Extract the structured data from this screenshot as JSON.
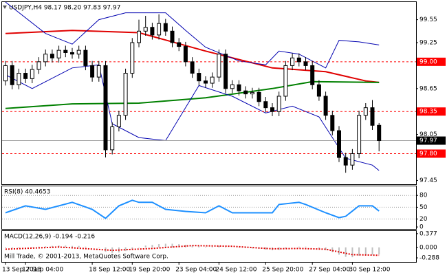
{
  "chart_data": [
    {
      "type": "candlestick",
      "title": "USDJPY,H4  98.17 98.20 97.83 97.97",
      "categories": [
        "13 Sep 2013",
        null,
        null,
        "17 Sep 04:00",
        null,
        null,
        null,
        null,
        null,
        null,
        null,
        null,
        null,
        "18 Sep 12:00",
        null,
        null,
        null,
        null,
        null,
        "19 Sep 20:00",
        null,
        null,
        null,
        null,
        null,
        null,
        "23 Sep 04:00",
        null,
        null,
        null,
        null,
        null,
        "24 Sep 12:00",
        null,
        null,
        null,
        null,
        null,
        null,
        "25 Sep 20:00",
        null,
        null,
        null,
        null,
        null,
        null,
        "27 Sep 04:00",
        null,
        null,
        null,
        null,
        null,
        "30 Sep 12:00",
        null,
        null,
        null,
        null
      ],
      "open": [
        98.75,
        98.95,
        98.7,
        98.85,
        98.78,
        98.9,
        99.0,
        99.1,
        99.05,
        99.15,
        99.12,
        99.1,
        99.15,
        98.95,
        98.8,
        98.95,
        97.85,
        98.15,
        98.3,
        98.85,
        99.25,
        99.4,
        99.45,
        99.35,
        99.5,
        99.4,
        99.25,
        99.2,
        99.0,
        98.85,
        98.75,
        98.72,
        98.8,
        99.1,
        98.65,
        98.7,
        98.62,
        98.58,
        98.6,
        98.48,
        98.4,
        98.35,
        98.55,
        98.95,
        99.05,
        99.0,
        98.95,
        98.7,
        98.55,
        98.3,
        98.1,
        97.75,
        97.65,
        97.8,
        98.3,
        98.4,
        98.17
      ],
      "high": [
        99.01,
        99.01,
        98.91,
        98.91,
        98.96,
        99.06,
        99.16,
        99.16,
        99.21,
        99.21,
        99.18,
        99.21,
        99.21,
        99.01,
        99.01,
        99.01,
        98.21,
        98.36,
        98.91,
        99.31,
        99.55,
        99.6,
        99.51,
        99.62,
        99.56,
        99.46,
        99.31,
        99.26,
        99.06,
        98.91,
        98.81,
        98.86,
        99.16,
        99.16,
        98.76,
        98.76,
        98.68,
        98.66,
        98.66,
        98.54,
        98.46,
        98.61,
        99.01,
        99.11,
        99.11,
        99.06,
        99.01,
        98.76,
        98.61,
        98.36,
        98.16,
        97.81,
        97.86,
        98.36,
        98.46,
        98.5,
        98.2
      ],
      "low": [
        98.69,
        98.64,
        98.64,
        98.72,
        98.72,
        98.84,
        98.94,
        98.99,
        98.99,
        99.06,
        99.04,
        99.04,
        98.89,
        98.74,
        98.74,
        97.75,
        97.79,
        98.09,
        98.24,
        98.79,
        99.19,
        99.34,
        99.29,
        99.29,
        99.34,
        99.19,
        99.14,
        98.94,
        98.79,
        98.69,
        98.66,
        98.66,
        98.74,
        98.59,
        98.59,
        98.56,
        98.52,
        98.52,
        98.42,
        98.34,
        98.29,
        98.29,
        98.49,
        98.89,
        98.94,
        98.89,
        98.64,
        98.49,
        98.24,
        98.04,
        97.69,
        97.55,
        97.59,
        97.74,
        98.24,
        98.11,
        97.83
      ],
      "close": [
        98.95,
        98.7,
        98.85,
        98.78,
        98.9,
        99.0,
        99.1,
        99.05,
        99.15,
        99.12,
        99.1,
        99.15,
        98.95,
        98.8,
        98.95,
        97.85,
        98.15,
        98.3,
        98.85,
        99.25,
        99.4,
        99.45,
        99.35,
        99.5,
        99.4,
        99.25,
        99.2,
        99.0,
        98.85,
        98.75,
        98.72,
        98.8,
        99.1,
        98.65,
        98.7,
        98.62,
        98.58,
        98.6,
        98.48,
        98.4,
        98.35,
        98.55,
        98.95,
        99.05,
        99.0,
        98.95,
        98.7,
        98.55,
        98.3,
        98.1,
        97.75,
        97.65,
        97.8,
        98.3,
        98.4,
        98.17,
        97.97
      ],
      "bull_color": "#ffffff",
      "bear_color": "#000000",
      "ylim": [
        97.4,
        99.78
      ],
      "yticks": [
        97.45,
        98.05,
        98.65,
        99.25,
        99.55
      ],
      "overlays": [
        {
          "color": "#e00000",
          "x": [
            0,
            10,
            20,
            30,
            40,
            48,
            54,
            56
          ],
          "values": [
            99.37,
            99.41,
            99.38,
            99.14,
            98.92,
            98.87,
            98.75,
            98.73
          ]
        },
        {
          "color": "#008000",
          "x": [
            0,
            10,
            20,
            30,
            40,
            46,
            56
          ],
          "values": [
            98.39,
            98.45,
            98.46,
            98.53,
            98.65,
            98.74,
            98.73
          ]
        },
        {
          "color": "#0000b0",
          "x": [
            0,
            6,
            10,
            14,
            18,
            24,
            27,
            30,
            35,
            39,
            41,
            44,
            48,
            50,
            53,
            56
          ],
          "values": [
            99.78,
            99.37,
            99.23,
            99.55,
            99.64,
            99.64,
            99.41,
            99.19,
            99.01,
            98.96,
            99.14,
            99.1,
            98.92,
            99.28,
            99.26,
            99.22
          ]
        },
        {
          "color": "#0000b0",
          "x": [
            0,
            4,
            10,
            14,
            16,
            20,
            24,
            29,
            34,
            39,
            43,
            47,
            51,
            55,
            56
          ],
          "values": [
            98.83,
            98.65,
            98.92,
            98.96,
            98.19,
            98.01,
            97.97,
            98.69,
            98.55,
            98.33,
            98.42,
            98.28,
            97.74,
            97.65,
            97.58
          ]
        }
      ],
      "levels": {
        "values": [
          99.0,
          98.35,
          97.8
        ],
        "value_labels": [
          "99.00",
          "98.35",
          "97.80"
        ],
        "color": "#ff0000"
      },
      "last_color": "#000000"
    },
    {
      "type": "line",
      "title": "RSI(8) 40.4653",
      "x": [
        0,
        3,
        6,
        10,
        13,
        15,
        17,
        19,
        20,
        22,
        24,
        27,
        30,
        32,
        34,
        37,
        40,
        41,
        44,
        45,
        48,
        50,
        51,
        53,
        55,
        56
      ],
      "values": [
        35.9,
        53.5,
        44.7,
        62.4,
        44.7,
        21.8,
        53.5,
        67.7,
        62.4,
        62.4,
        44.7,
        39.4,
        35.9,
        53.5,
        35.9,
        35.9,
        35.9,
        57.1,
        62.4,
        57.1,
        35.9,
        23.6,
        27.1,
        53.5,
        53.5,
        40.4653
      ],
      "color": "#1e90ff",
      "ylim": [
        -5,
        103
      ],
      "yticks": [
        0,
        20,
        50,
        80
      ],
      "levels": [
        20,
        50,
        80
      ]
    },
    {
      "type": "macd",
      "title": "MACD(12,26,9) -0.194 -0.216",
      "values": [
        -0.02,
        -0.03,
        -0.02,
        0,
        0.01,
        0.02,
        0.03,
        0.04,
        0.05,
        0.05,
        0.04,
        0.04,
        0.02,
        0,
        -0.01,
        -0.12,
        -0.15,
        -0.14,
        -0.1,
        -0.05,
        0.01,
        0.05,
        0.07,
        0.09,
        0.1,
        0.1,
        0.09,
        0.07,
        0.05,
        0.03,
        0.02,
        0.02,
        0.04,
        0.02,
        0,
        -0.01,
        -0.02,
        -0.03,
        -0.04,
        -0.06,
        -0.08,
        -0.07,
        -0.03,
        0,
        0.02,
        0.02,
        0,
        -0.03,
        -0.08,
        -0.13,
        -0.2,
        -0.26,
        -0.27,
        -0.23,
        -0.21,
        -0.2,
        -0.194
      ],
      "color": "#c0c0c0",
      "signal": {
        "color": "#e00000",
        "x": [
          0,
          8,
          16,
          22,
          28,
          34,
          40,
          44,
          48,
          52,
          56
        ],
        "values": [
          -0.05,
          0.01,
          -0.08,
          -0.03,
          0.05,
          0.03,
          -0.04,
          -0.03,
          -0.05,
          -0.2,
          -0.216
        ]
      },
      "ylim": [
        -0.4,
        0.45
      ],
      "yticks": [
        -0.288,
        {
          "value": 0,
          "label": "0.000"
        },
        0.377
      ],
      "annotation": "Mill Trade, © 2001-2013, MetaQuotes Software Corp."
    }
  ]
}
